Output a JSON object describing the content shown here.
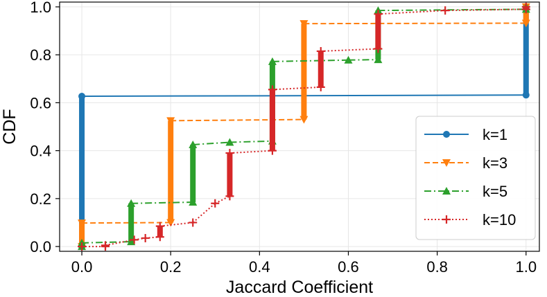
{
  "chart_data": {
    "type": "line",
    "title": "",
    "xlabel": "Jaccard Coefficient",
    "ylabel": "CDF",
    "xlim": [
      -0.05,
      1.03
    ],
    "ylim": [
      -0.02,
      1.02
    ],
    "xticks": [
      0.0,
      0.2,
      0.4,
      0.6,
      0.8,
      1.0
    ],
    "xtick_labels": [
      "0.0",
      "0.2",
      "0.4",
      "0.6",
      "0.8",
      "1.0"
    ],
    "yticks": [
      0.0,
      0.2,
      0.4,
      0.6,
      0.8,
      1.0
    ],
    "ytick_labels": [
      "0.0",
      "0.2",
      "0.4",
      "0.6",
      "0.8",
      "1.0"
    ],
    "grid": true,
    "legend_position": "center-right",
    "series": [
      {
        "name": "k=1",
        "color": "#1f77b4",
        "linestyle": "solid",
        "marker": "circle",
        "points": [
          [
            0.0,
            0.0
          ],
          [
            0.0,
            0.627
          ],
          [
            1.0,
            0.632
          ],
          [
            1.0,
            1.0
          ]
        ]
      },
      {
        "name": "k=3",
        "color": "#ff7f0e",
        "linestyle": "dashed",
        "marker": "triangle-down",
        "points": [
          [
            0.0,
            0.0
          ],
          [
            0.0,
            0.098
          ],
          [
            0.2,
            0.1
          ],
          [
            0.2,
            0.525
          ],
          [
            0.5,
            0.53
          ],
          [
            0.5,
            0.93
          ],
          [
            1.0,
            0.932
          ],
          [
            1.0,
            1.0
          ]
        ]
      },
      {
        "name": "k=5",
        "color": "#2ca02c",
        "linestyle": "dashdot",
        "marker": "triangle-up",
        "points": [
          [
            0.0,
            0.0
          ],
          [
            0.0,
            0.015
          ],
          [
            0.111,
            0.02
          ],
          [
            0.111,
            0.18
          ],
          [
            0.25,
            0.185
          ],
          [
            0.25,
            0.425
          ],
          [
            0.333,
            0.435
          ],
          [
            0.429,
            0.44
          ],
          [
            0.429,
            0.772
          ],
          [
            0.6,
            0.778
          ],
          [
            0.667,
            0.78
          ],
          [
            0.667,
            0.985
          ],
          [
            1.0,
            0.99
          ],
          [
            1.0,
            1.0
          ]
        ]
      },
      {
        "name": "k=10",
        "color": "#d62728",
        "linestyle": "dotted",
        "marker": "plus",
        "points": [
          [
            0.0,
            0.0
          ],
          [
            0.053,
            0.0
          ],
          [
            0.053,
            0.005
          ],
          [
            0.118,
            0.028
          ],
          [
            0.143,
            0.035
          ],
          [
            0.176,
            0.04
          ],
          [
            0.176,
            0.085
          ],
          [
            0.25,
            0.1
          ],
          [
            0.3,
            0.18
          ],
          [
            0.333,
            0.21
          ],
          [
            0.333,
            0.39
          ],
          [
            0.429,
            0.4
          ],
          [
            0.429,
            0.655
          ],
          [
            0.538,
            0.665
          ],
          [
            0.538,
            0.815
          ],
          [
            0.667,
            0.825
          ],
          [
            0.667,
            0.97
          ],
          [
            0.818,
            0.985
          ],
          [
            1.0,
            0.99
          ],
          [
            1.0,
            1.0
          ]
        ]
      }
    ]
  }
}
